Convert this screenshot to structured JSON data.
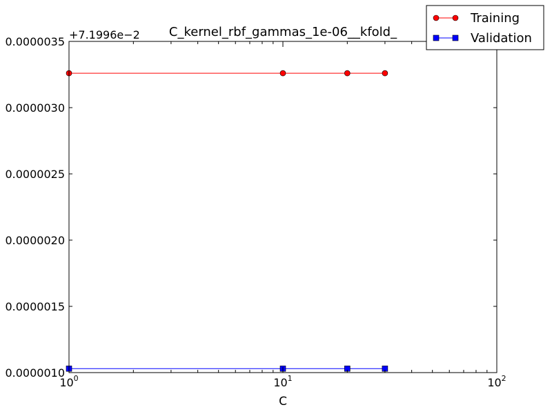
{
  "chart_data": {
    "type": "line",
    "title": "C_kernel_rbf_gammas_1e-06__kfold_",
    "xlabel": "C",
    "ylabel": "",
    "x_scale": "log",
    "xlim": [
      1,
      100
    ],
    "x_ticks": [
      {
        "value": 1,
        "base": "10",
        "exp": "0"
      },
      {
        "value": 10,
        "base": "10",
        "exp": "1"
      },
      {
        "value": 100,
        "base": "10",
        "exp": "2"
      }
    ],
    "y_offset_text": "+7.1996e−2",
    "ylim": [
      1e-06,
      3.5e-06
    ],
    "y_ticks": [
      {
        "value": 1e-06,
        "label": "0.0000010"
      },
      {
        "value": 1.5e-06,
        "label": "0.0000015"
      },
      {
        "value": 2e-06,
        "label": "0.0000020"
      },
      {
        "value": 2.5e-06,
        "label": "0.0000025"
      },
      {
        "value": 3e-06,
        "label": "0.0000030"
      },
      {
        "value": 3.5e-06,
        "label": "0.0000035"
      }
    ],
    "grid": false,
    "legend_position": "top-right, outside plot area",
    "series": [
      {
        "name": "Training",
        "color": "#ff0000",
        "marker": "circle",
        "x": [
          1,
          10,
          20,
          30
        ],
        "y": [
          3.26e-06,
          3.26e-06,
          3.26e-06,
          3.26e-06
        ]
      },
      {
        "name": "Validation",
        "color": "#0000ff",
        "marker": "square",
        "x": [
          1,
          10,
          20,
          30
        ],
        "y": [
          1.03e-06,
          1.03e-06,
          1.03e-06,
          1.03e-06
        ]
      }
    ]
  }
}
